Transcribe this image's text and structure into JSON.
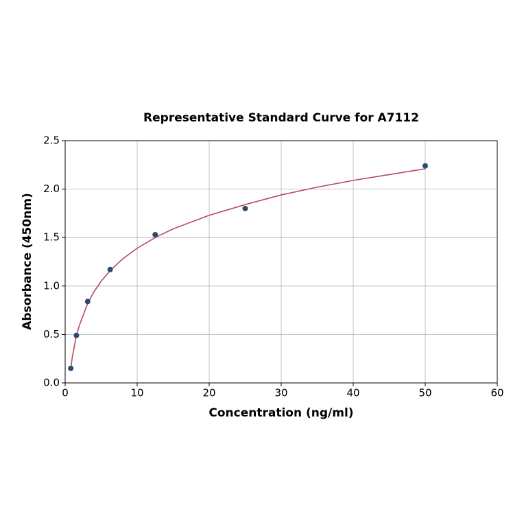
{
  "chart_data": {
    "type": "scatter",
    "title": "Representative Standard Curve for A7112",
    "x_label": "Concentration (ng/ml)",
    "y_label": "Absorbance (450nm)",
    "x": [
      0.78,
      1.56,
      3.125,
      6.25,
      12.5,
      25,
      50
    ],
    "values": [
      0.15,
      0.49,
      0.84,
      1.17,
      1.53,
      1.8,
      2.24
    ],
    "color": "#2e4a6e",
    "fit": {
      "color": "#b5476a",
      "x": [
        0.78,
        1,
        1.56,
        2,
        3.125,
        4,
        5,
        6.25,
        8,
        10,
        12.5,
        15,
        20,
        25,
        30,
        35,
        40,
        45,
        50
      ],
      "values": [
        0.15,
        0.27,
        0.49,
        0.6,
        0.82,
        0.94,
        1.05,
        1.16,
        1.28,
        1.39,
        1.5,
        1.59,
        1.73,
        1.84,
        1.94,
        2.02,
        2.09,
        2.15,
        2.21
      ]
    },
    "xlim": [
      0,
      60
    ],
    "xticks": [
      0,
      10,
      20,
      30,
      40,
      50,
      60
    ],
    "ylim": [
      0,
      2.5
    ],
    "yticks": [
      {
        "value": 0,
        "label": "0.0"
      },
      0.5,
      {
        "value": 1,
        "label": "1.0"
      },
      1.5,
      {
        "value": 2,
        "label": "2.0"
      },
      2.5
    ],
    "grid": true
  }
}
